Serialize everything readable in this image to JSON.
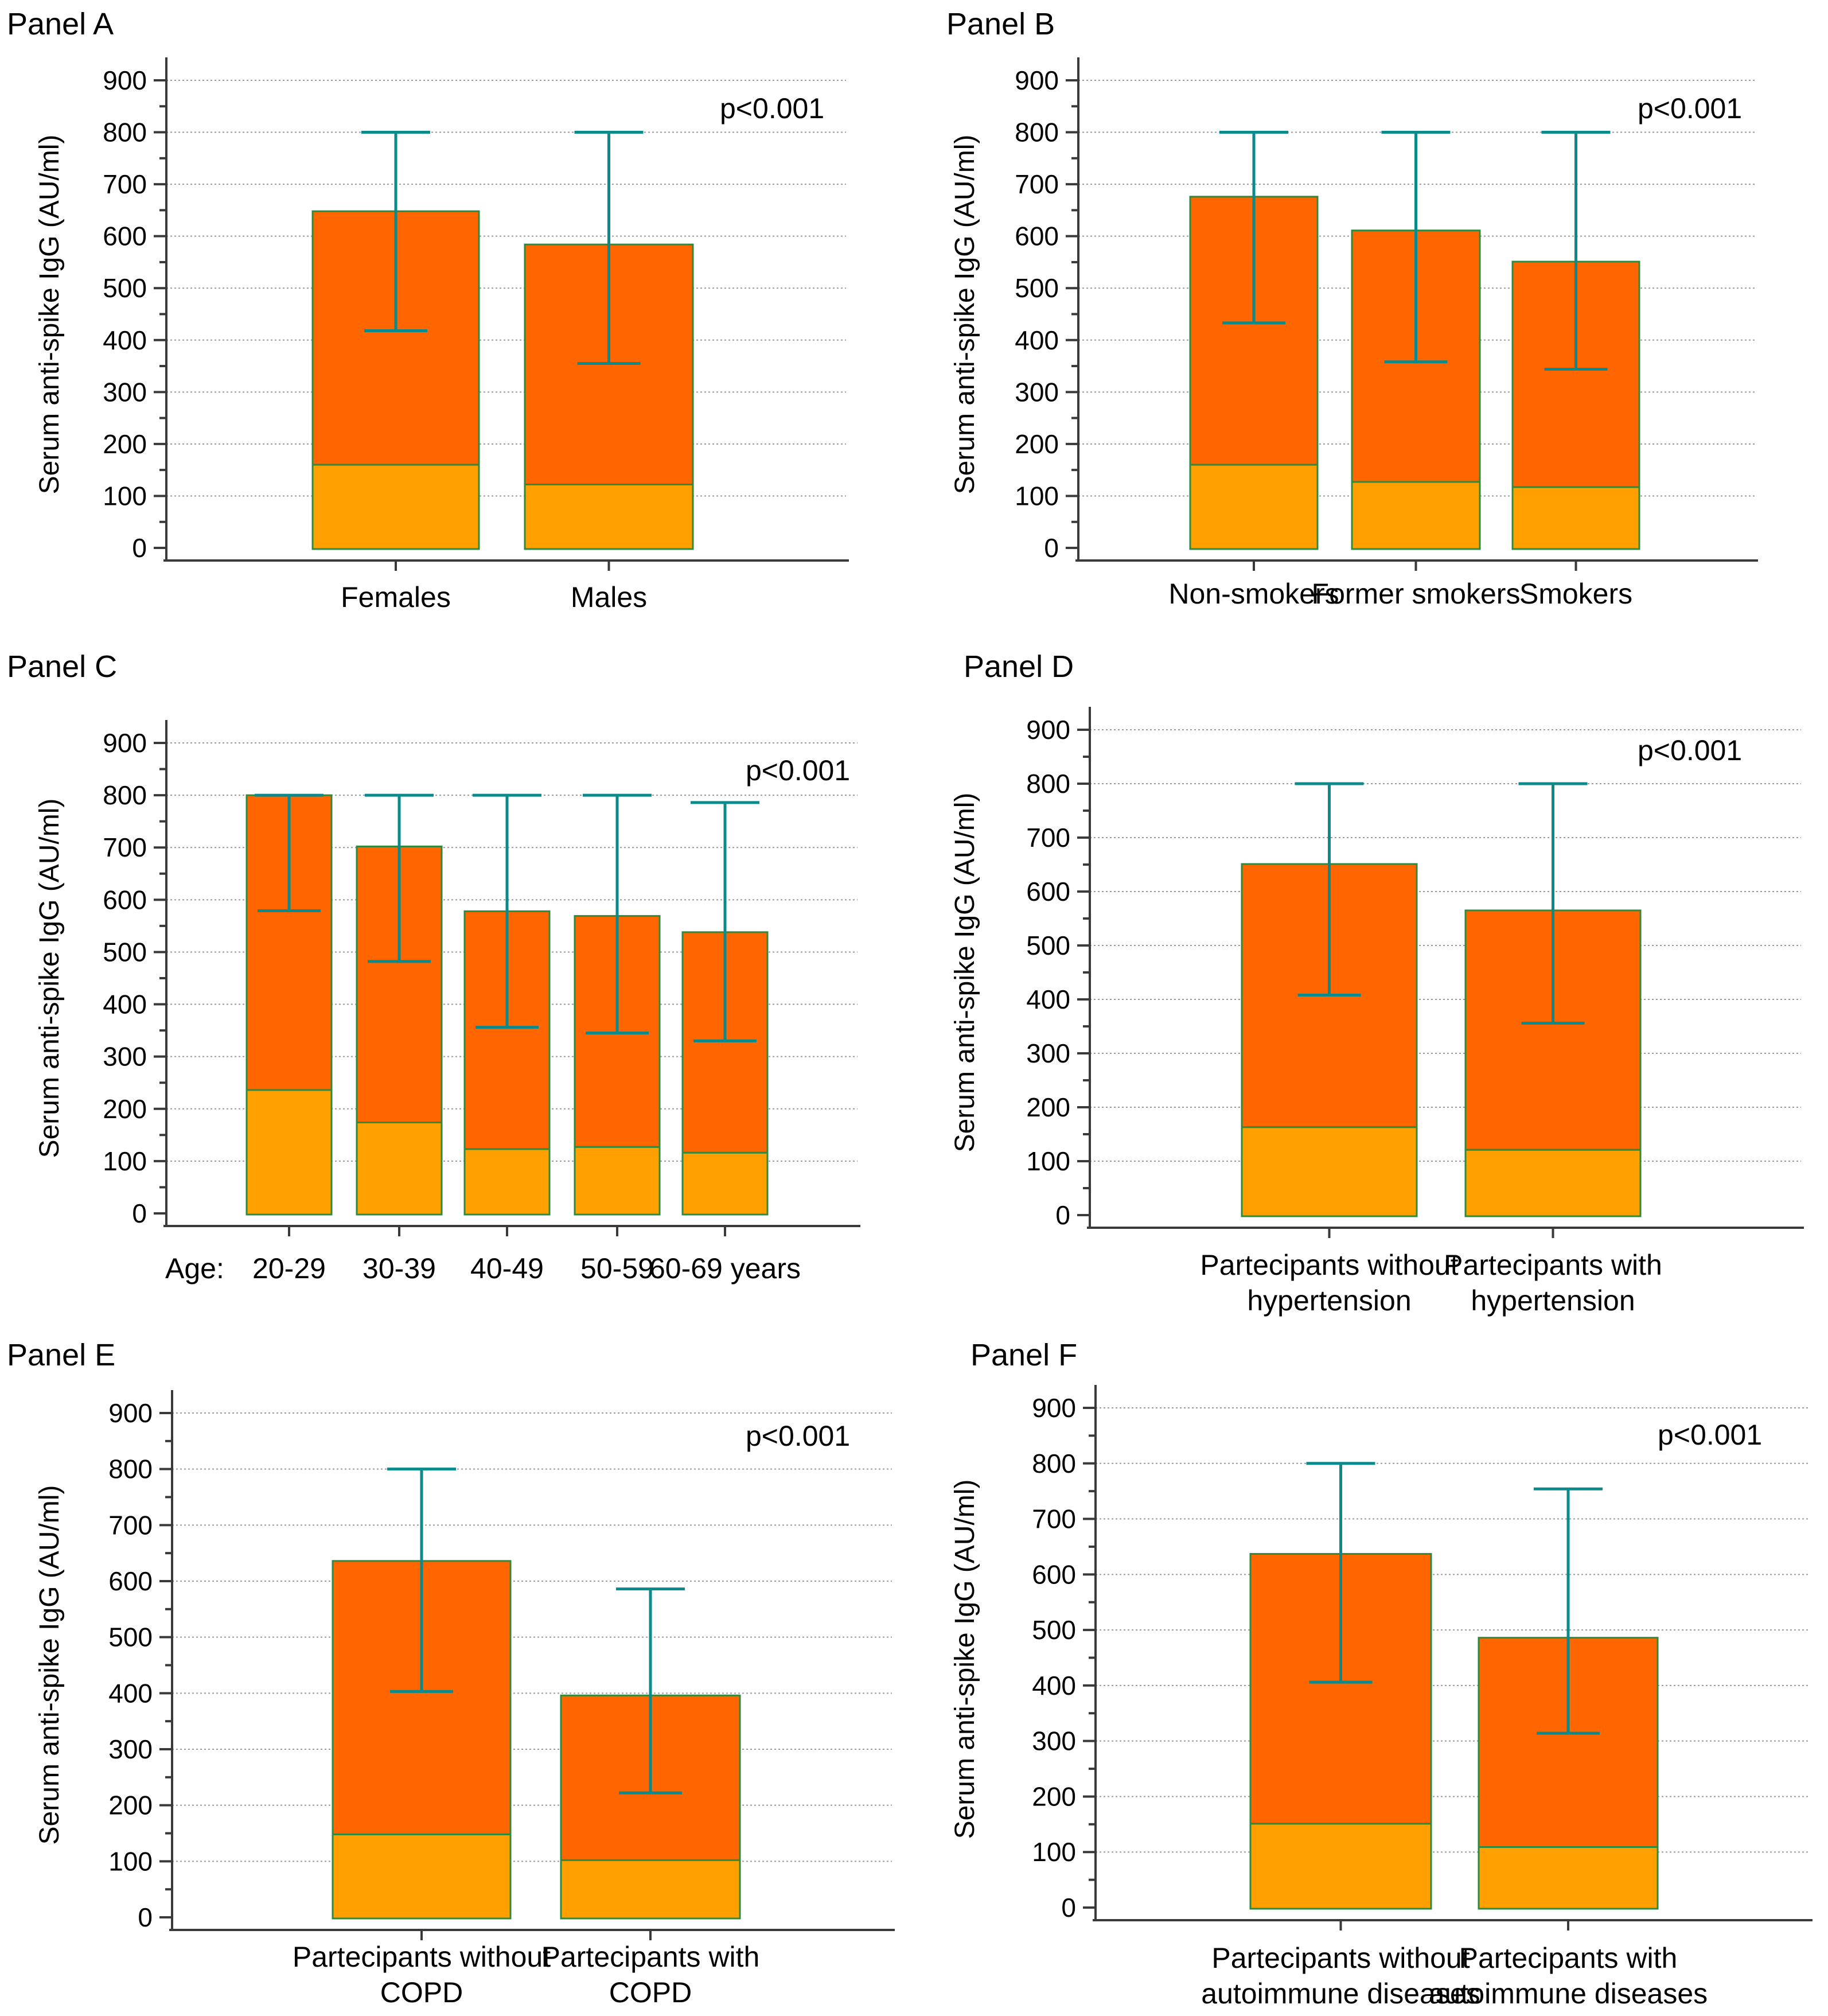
{
  "chart_data": [
    {
      "type": "bar",
      "panel": "Panel A",
      "ylabel": "Serum anti-spike IgG (AU/ml)",
      "ylim": [
        0,
        900
      ],
      "yticks": [
        0,
        100,
        200,
        300,
        400,
        500,
        600,
        700,
        800,
        900
      ],
      "annotation": "p<0.001",
      "categories": [
        [
          "Females"
        ],
        [
          "Males"
        ]
      ],
      "prefix": "",
      "lower": [
        160,
        122
      ],
      "median": [
        648,
        584
      ],
      "whisker_low": [
        418,
        355
      ],
      "whisker_high": [
        800,
        800
      ],
      "colors": {
        "upper": "#ff6600",
        "lower": "#ffa000",
        "error": "#0a8a8a"
      }
    },
    {
      "type": "bar",
      "panel": "Panel B",
      "ylabel": "Serum anti-spike IgG (AU/ml)",
      "ylim": [
        0,
        900
      ],
      "yticks": [
        0,
        100,
        200,
        300,
        400,
        500,
        600,
        700,
        800,
        900
      ],
      "annotation": "p<0.001",
      "categories": [
        [
          "Non-smokers"
        ],
        [
          "Former smokers"
        ],
        [
          "Smokers"
        ]
      ],
      "prefix": "",
      "lower": [
        160,
        127,
        117
      ],
      "median": [
        676,
        611,
        551
      ],
      "whisker_low": [
        433,
        358,
        344
      ],
      "whisker_high": [
        800,
        800,
        800
      ],
      "colors": {
        "upper": "#ff6600",
        "lower": "#ffa000",
        "error": "#0a8a8a"
      }
    },
    {
      "type": "bar",
      "panel": "Panel C",
      "ylabel": "Serum anti-spike IgG (AU/ml)",
      "ylim": [
        0,
        900
      ],
      "yticks": [
        0,
        100,
        200,
        300,
        400,
        500,
        600,
        700,
        800,
        900
      ],
      "annotation": "p<0.001",
      "categories": [
        [
          "20-29"
        ],
        [
          "30-39"
        ],
        [
          "40-49"
        ],
        [
          "50-59"
        ],
        [
          "60-69 years"
        ]
      ],
      "prefix": "Age:",
      "lower": [
        236,
        174,
        123,
        127,
        116
      ],
      "median": [
        800,
        702,
        578,
        569,
        538
      ],
      "whisker_low": [
        579,
        482,
        356,
        345,
        330
      ],
      "whisker_high": [
        800,
        800,
        800,
        800,
        786
      ],
      "colors": {
        "upper": "#ff6600",
        "lower": "#ffa000",
        "error": "#0a8a8a"
      }
    },
    {
      "type": "bar",
      "panel": "Panel D",
      "ylabel": "Serum anti-spike IgG (AU/ml)",
      "ylim": [
        0,
        900
      ],
      "yticks": [
        0,
        100,
        200,
        300,
        400,
        500,
        600,
        700,
        800,
        900
      ],
      "annotation": "p<0.001",
      "categories": [
        [
          "Partecipants without",
          "hypertension"
        ],
        [
          "Partecipants with",
          "hypertension"
        ]
      ],
      "prefix": "",
      "lower": [
        163,
        121
      ],
      "median": [
        651,
        565
      ],
      "whisker_low": [
        408,
        356
      ],
      "whisker_high": [
        800,
        800
      ],
      "colors": {
        "upper": "#ff6600",
        "lower": "#ffa000",
        "error": "#0a8a8a"
      }
    },
    {
      "type": "bar",
      "panel": "Panel E",
      "ylabel": "Serum anti-spike IgG (AU/ml)",
      "ylim": [
        0,
        900
      ],
      "yticks": [
        0,
        100,
        200,
        300,
        400,
        500,
        600,
        700,
        800,
        900
      ],
      "annotation": "p<0.001",
      "categories": [
        [
          "Partecipants without",
          "COPD"
        ],
        [
          "Partecipants with",
          "COPD"
        ]
      ],
      "prefix": "",
      "lower": [
        148,
        102
      ],
      "median": [
        636,
        396
      ],
      "whisker_low": [
        403,
        222
      ],
      "whisker_high": [
        800,
        586
      ],
      "colors": {
        "upper": "#ff6600",
        "lower": "#ffa000",
        "error": "#0a8a8a"
      }
    },
    {
      "type": "bar",
      "panel": "Panel F",
      "ylabel": "Serum anti-spike IgG (AU/ml)",
      "ylim": [
        0,
        900
      ],
      "yticks": [
        0,
        100,
        200,
        300,
        400,
        500,
        600,
        700,
        800,
        900
      ],
      "annotation": "p<0.001",
      "categories": [
        [
          "Partecipants without",
          "autoimmune diseases"
        ],
        [
          "Partecipants with",
          "autoimmune diseases"
        ]
      ],
      "prefix": "",
      "lower": [
        151,
        109
      ],
      "median": [
        637,
        486
      ],
      "whisker_low": [
        406,
        314
      ],
      "whisker_high": [
        800,
        754
      ],
      "colors": {
        "upper": "#ff6600",
        "lower": "#ffa000",
        "error": "#0a8a8a"
      }
    }
  ]
}
